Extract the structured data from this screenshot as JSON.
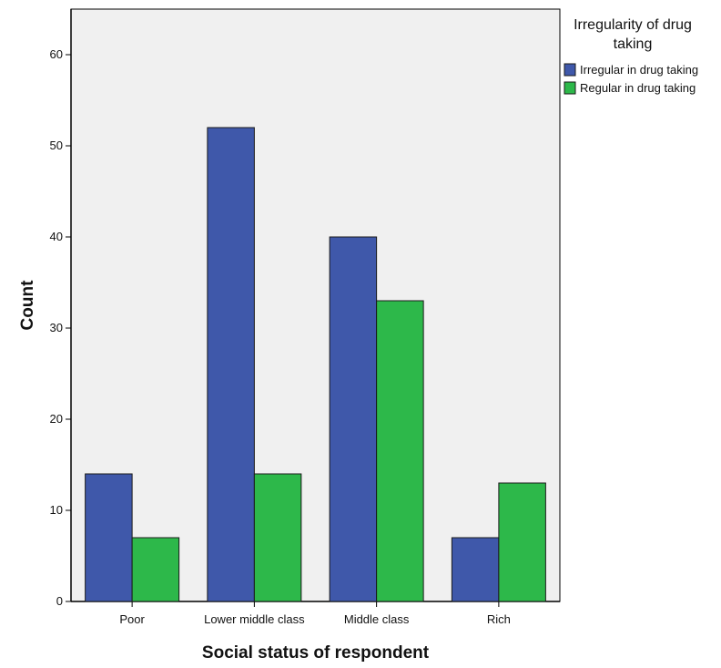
{
  "chart_data": {
    "type": "bar",
    "title": "",
    "xlabel": "Social status of respondent",
    "ylabel": "Count",
    "categories": [
      "Poor",
      "Lower middle class",
      "Middle class",
      "Rich"
    ],
    "series": [
      {
        "name": "Irregular in drug taking",
        "color": "#3f58aa",
        "values": [
          14,
          52,
          40,
          7
        ]
      },
      {
        "name": "Regular in drug taking",
        "color": "#2db84a",
        "values": [
          7,
          14,
          33,
          13
        ]
      }
    ],
    "ylim": [
      0,
      65
    ],
    "yticks": [
      0,
      10,
      20,
      30,
      40,
      50,
      60
    ],
    "grid": false,
    "legend": {
      "title_lines": [
        "Irregularity of drug",
        "taking"
      ],
      "placement": "right"
    },
    "colors": {
      "plot_background": "#f0f0f0",
      "bar_outline": "#1a1a1a"
    }
  }
}
